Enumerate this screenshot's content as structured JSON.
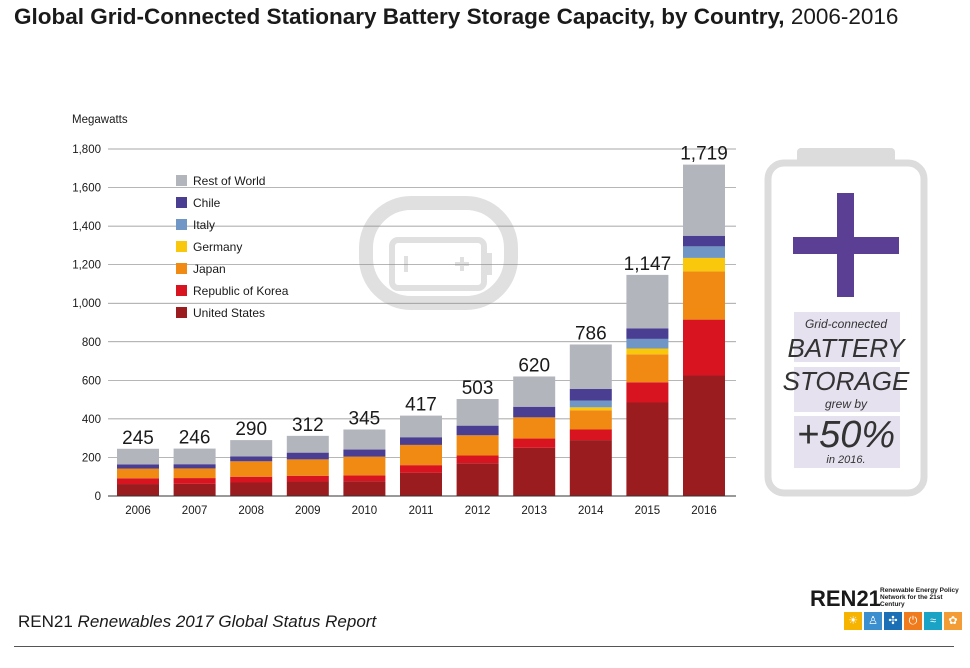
{
  "title": {
    "main": "Global Grid-Connected Stationary Battery Storage Capacity, by Country,",
    "years": "2006-2016"
  },
  "chart_data": {
    "type": "bar",
    "stacked": true,
    "ylabel": "Megawatts",
    "ylim": [
      0,
      1800
    ],
    "yticks": [
      0,
      200,
      400,
      600,
      800,
      1000,
      1200,
      1400,
      1600,
      1800
    ],
    "ytick_labels": [
      "0",
      "200",
      "400",
      "600",
      "800",
      "1,000",
      "1,200",
      "1,400",
      "1,600",
      "1,800"
    ],
    "categories": [
      "2006",
      "2007",
      "2008",
      "2009",
      "2010",
      "2011",
      "2012",
      "2013",
      "2014",
      "2015",
      "2016"
    ],
    "totals": [
      245,
      246,
      290,
      312,
      345,
      417,
      503,
      620,
      786,
      1147,
      1719
    ],
    "total_labels": [
      "245",
      "246",
      "290",
      "312",
      "345",
      "417",
      "503",
      "620",
      "786",
      "1,147",
      "1,719"
    ],
    "grid": true,
    "legend_position": "top-left",
    "series": [
      {
        "name": "United States",
        "color": "#9b1c1f",
        "values": [
          62,
          63,
          70,
          75,
          77,
          120,
          170,
          250,
          290,
          485,
          625
        ]
      },
      {
        "name": "Republic of Korea",
        "color": "#d7141f",
        "values": [
          30,
          30,
          30,
          30,
          30,
          40,
          40,
          48,
          55,
          105,
          290
        ]
      },
      {
        "name": "Japan",
        "color": "#f08a12",
        "values": [
          50,
          50,
          80,
          85,
          97,
          105,
          105,
          110,
          100,
          145,
          250
        ]
      },
      {
        "name": "Germany",
        "color": "#f9c70c",
        "values": [
          0,
          0,
          0,
          0,
          0,
          0,
          0,
          0,
          15,
          30,
          70
        ]
      },
      {
        "name": "Italy",
        "color": "#6f96c4",
        "values": [
          0,
          0,
          0,
          0,
          0,
          0,
          0,
          0,
          35,
          50,
          60
        ]
      },
      {
        "name": "Chile",
        "color": "#4a3e93",
        "values": [
          22,
          22,
          25,
          35,
          37,
          40,
          50,
          55,
          60,
          55,
          55
        ]
      },
      {
        "name": "Rest of World",
        "color": "#b3b5bd",
        "values": [
          81,
          81,
          85,
          87,
          104,
          112,
          138,
          157,
          231,
          277,
          369
        ]
      }
    ]
  },
  "side_panel": {
    "line1": "Grid-connected",
    "line2": "BATTERY",
    "line3": "STORAGE",
    "line4": "grew by",
    "line5": "+50%",
    "line6": "in 2016.",
    "accent_color": "#5b3f94",
    "battery_color": "#dcdcdc"
  },
  "footer": {
    "org": "REN21",
    "report": "Renewables 2017 Global Status Report"
  },
  "logo": {
    "name": "REN21",
    "tagline": "Renewable Energy Policy Network for the 21st Century"
  }
}
